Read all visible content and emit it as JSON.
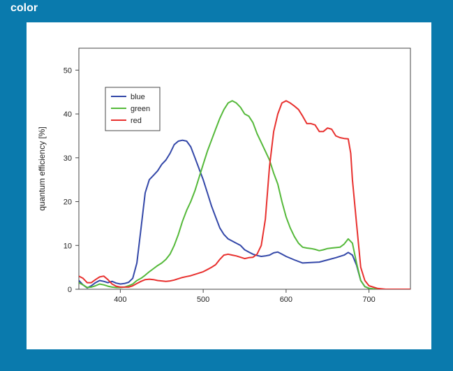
{
  "header": {
    "label": "color"
  },
  "colors": {
    "frame": "#0a7aad",
    "panel": "#ffffff"
  },
  "chart_data": {
    "type": "line",
    "title": "",
    "xlabel": "",
    "ylabel": "quantum efficiency [%]",
    "xlim": [
      350,
      750
    ],
    "ylim": [
      0,
      55
    ],
    "xticks": [
      400,
      500,
      600,
      700
    ],
    "yticks": [
      0,
      10,
      20,
      30,
      40,
      50
    ],
    "grid": false,
    "legend": "top-left",
    "series": [
      {
        "name": "blue",
        "color": "#3347a8",
        "points": [
          [
            350,
            2
          ],
          [
            355,
            1
          ],
          [
            360,
            0.3
          ],
          [
            365,
            0.8
          ],
          [
            370,
            1.5
          ],
          [
            375,
            2
          ],
          [
            380,
            1.8
          ],
          [
            385,
            1.5
          ],
          [
            390,
            1.8
          ],
          [
            395,
            1.4
          ],
          [
            400,
            1.2
          ],
          [
            405,
            1.3
          ],
          [
            410,
            1.6
          ],
          [
            415,
            2.5
          ],
          [
            420,
            6
          ],
          [
            425,
            14
          ],
          [
            430,
            22
          ],
          [
            435,
            25
          ],
          [
            440,
            26
          ],
          [
            445,
            27
          ],
          [
            450,
            28.5
          ],
          [
            455,
            29.5
          ],
          [
            460,
            31
          ],
          [
            465,
            33
          ],
          [
            470,
            33.8
          ],
          [
            475,
            34
          ],
          [
            480,
            33.8
          ],
          [
            485,
            32.5
          ],
          [
            490,
            30
          ],
          [
            495,
            27.5
          ],
          [
            500,
            25
          ],
          [
            505,
            22
          ],
          [
            510,
            19
          ],
          [
            515,
            16.5
          ],
          [
            520,
            14
          ],
          [
            525,
            12.5
          ],
          [
            530,
            11.5
          ],
          [
            535,
            11
          ],
          [
            540,
            10.5
          ],
          [
            545,
            10
          ],
          [
            550,
            9
          ],
          [
            555,
            8.5
          ],
          [
            560,
            8
          ],
          [
            565,
            7.7
          ],
          [
            570,
            7.5
          ],
          [
            575,
            7.6
          ],
          [
            580,
            7.8
          ],
          [
            585,
            8.3
          ],
          [
            590,
            8.5
          ],
          [
            595,
            8
          ],
          [
            600,
            7.5
          ],
          [
            610,
            6.7
          ],
          [
            620,
            6
          ],
          [
            630,
            6.1
          ],
          [
            640,
            6.2
          ],
          [
            650,
            6.7
          ],
          [
            660,
            7.2
          ],
          [
            670,
            7.8
          ],
          [
            675,
            8.4
          ],
          [
            680,
            7.8
          ],
          [
            685,
            5.5
          ],
          [
            690,
            2
          ],
          [
            695,
            0.6
          ],
          [
            700,
            0.2
          ],
          [
            710,
            0
          ],
          [
            750,
            0
          ]
        ]
      },
      {
        "name": "green",
        "color": "#55b93a",
        "points": [
          [
            350,
            1.5
          ],
          [
            355,
            1
          ],
          [
            360,
            0.4
          ],
          [
            365,
            0.5
          ],
          [
            370,
            0.8
          ],
          [
            375,
            1.2
          ],
          [
            380,
            1
          ],
          [
            385,
            0.7
          ],
          [
            390,
            0.5
          ],
          [
            395,
            0.4
          ],
          [
            400,
            0.4
          ],
          [
            405,
            0.5
          ],
          [
            410,
            0.8
          ],
          [
            415,
            1.2
          ],
          [
            420,
            2
          ],
          [
            425,
            2.5
          ],
          [
            430,
            3.2
          ],
          [
            435,
            4
          ],
          [
            440,
            4.7
          ],
          [
            445,
            5.4
          ],
          [
            450,
            6
          ],
          [
            455,
            6.8
          ],
          [
            460,
            8
          ],
          [
            465,
            10
          ],
          [
            470,
            12.5
          ],
          [
            475,
            15.5
          ],
          [
            480,
            18
          ],
          [
            485,
            20
          ],
          [
            490,
            22.5
          ],
          [
            495,
            25.5
          ],
          [
            500,
            28.5
          ],
          [
            505,
            31.5
          ],
          [
            510,
            34
          ],
          [
            515,
            36.5
          ],
          [
            520,
            39
          ],
          [
            525,
            41
          ],
          [
            530,
            42.5
          ],
          [
            535,
            43
          ],
          [
            540,
            42.5
          ],
          [
            545,
            41.5
          ],
          [
            550,
            40
          ],
          [
            555,
            39.5
          ],
          [
            560,
            38
          ],
          [
            565,
            35.5
          ],
          [
            570,
            33.5
          ],
          [
            575,
            31.5
          ],
          [
            580,
            29.5
          ],
          [
            585,
            26.5
          ],
          [
            590,
            24
          ],
          [
            595,
            20
          ],
          [
            600,
            16.5
          ],
          [
            605,
            14
          ],
          [
            610,
            12
          ],
          [
            615,
            10.5
          ],
          [
            620,
            9.6
          ],
          [
            625,
            9.4
          ],
          [
            630,
            9.3
          ],
          [
            635,
            9.1
          ],
          [
            640,
            8.8
          ],
          [
            645,
            9
          ],
          [
            650,
            9.3
          ],
          [
            655,
            9.4
          ],
          [
            660,
            9.5
          ],
          [
            665,
            9.6
          ],
          [
            670,
            10.3
          ],
          [
            675,
            11.5
          ],
          [
            680,
            10.5
          ],
          [
            685,
            6
          ],
          [
            690,
            2
          ],
          [
            695,
            0.6
          ],
          [
            700,
            0.2
          ],
          [
            710,
            0
          ],
          [
            750,
            0
          ]
        ]
      },
      {
        "name": "red",
        "color": "#e8302e",
        "points": [
          [
            350,
            3
          ],
          [
            355,
            2.5
          ],
          [
            360,
            1.5
          ],
          [
            365,
            1.5
          ],
          [
            370,
            2.2
          ],
          [
            375,
            2.8
          ],
          [
            380,
            3
          ],
          [
            385,
            2.2
          ],
          [
            390,
            1.2
          ],
          [
            395,
            0.7
          ],
          [
            400,
            0.5
          ],
          [
            410,
            0.5
          ],
          [
            415,
            0.8
          ],
          [
            420,
            1.3
          ],
          [
            425,
            1.8
          ],
          [
            430,
            2.2
          ],
          [
            435,
            2.3
          ],
          [
            440,
            2.2
          ],
          [
            445,
            2
          ],
          [
            450,
            1.9
          ],
          [
            455,
            1.8
          ],
          [
            460,
            1.9
          ],
          [
            465,
            2.1
          ],
          [
            470,
            2.4
          ],
          [
            475,
            2.7
          ],
          [
            480,
            2.9
          ],
          [
            485,
            3.1
          ],
          [
            490,
            3.4
          ],
          [
            495,
            3.7
          ],
          [
            500,
            4
          ],
          [
            505,
            4.5
          ],
          [
            510,
            5
          ],
          [
            515,
            5.6
          ],
          [
            520,
            6.8
          ],
          [
            525,
            7.8
          ],
          [
            530,
            8
          ],
          [
            535,
            7.8
          ],
          [
            540,
            7.6
          ],
          [
            545,
            7.3
          ],
          [
            550,
            7
          ],
          [
            555,
            7.2
          ],
          [
            560,
            7.3
          ],
          [
            565,
            8
          ],
          [
            570,
            10
          ],
          [
            575,
            16
          ],
          [
            580,
            28
          ],
          [
            585,
            36
          ],
          [
            590,
            40
          ],
          [
            595,
            42.5
          ],
          [
            600,
            43
          ],
          [
            605,
            42.5
          ],
          [
            610,
            41.8
          ],
          [
            615,
            41
          ],
          [
            620,
            39.5
          ],
          [
            625,
            37.8
          ],
          [
            630,
            37.8
          ],
          [
            635,
            37.5
          ],
          [
            640,
            36
          ],
          [
            645,
            36
          ],
          [
            650,
            36.8
          ],
          [
            655,
            36.5
          ],
          [
            660,
            35
          ],
          [
            665,
            34.6
          ],
          [
            670,
            34.4
          ],
          [
            675,
            34.3
          ],
          [
            678,
            31
          ],
          [
            680,
            25
          ],
          [
            685,
            15
          ],
          [
            690,
            5
          ],
          [
            695,
            2
          ],
          [
            700,
            0.8
          ],
          [
            710,
            0.2
          ],
          [
            720,
            0
          ],
          [
            750,
            0
          ]
        ]
      }
    ]
  }
}
